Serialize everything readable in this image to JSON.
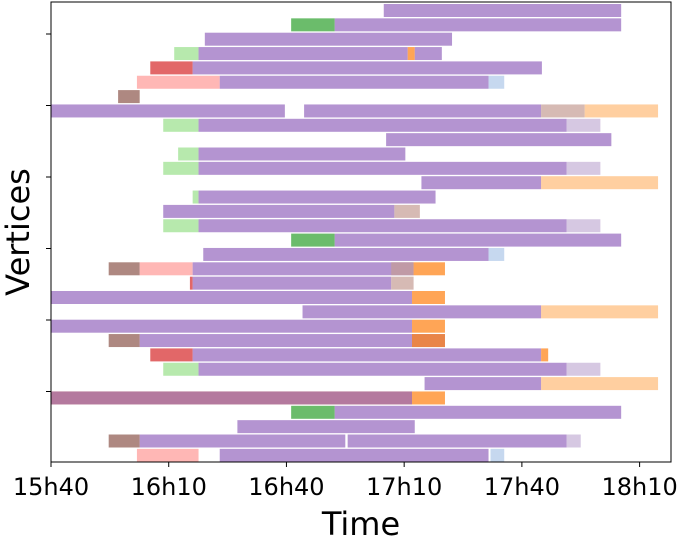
{
  "chart_data": {
    "type": "gantt",
    "title": "",
    "xlabel": "Time",
    "ylabel": "Vertices",
    "x_unit": "minutes since 15h40",
    "xlim": [
      0,
      158
    ],
    "x_ticks": [
      {
        "value": 0,
        "label": "15h40"
      },
      {
        "value": 30,
        "label": "16h10"
      },
      {
        "value": 60,
        "label": "16h40"
      },
      {
        "value": 90,
        "label": "17h10"
      },
      {
        "value": 120,
        "label": "17h40"
      },
      {
        "value": 150,
        "label": "18h10"
      }
    ],
    "y_tick_count": 6,
    "y_rows": 32,
    "colors": {
      "purple": "#9467bd",
      "green": "#2ca02c",
      "lightgreen": "#98df8a",
      "red": "#d62728",
      "pink": "#ff9896",
      "brown": "#8c564b",
      "tan": "#c49c94",
      "orange": "#ff7f0e",
      "lightorange": "#ffbb78",
      "lightblue": "#aec7e8",
      "lightpurple": "#c5b0d5"
    },
    "bars": [
      {
        "row": 0,
        "start": 21.9,
        "end": 37.6,
        "color": "pink"
      },
      {
        "row": 0,
        "start": 43.0,
        "end": 111.5,
        "color": "purple"
      },
      {
        "row": 0,
        "start": 112.0,
        "end": 115.5,
        "color": "lightblue"
      },
      {
        "row": 1,
        "start": 14.7,
        "end": 22.6,
        "color": "brown"
      },
      {
        "row": 1,
        "start": 22.6,
        "end": 75.0,
        "color": "purple"
      },
      {
        "row": 1,
        "start": 75.6,
        "end": 131.4,
        "color": "purple"
      },
      {
        "row": 1,
        "start": 131.4,
        "end": 135.0,
        "color": "lightpurple"
      },
      {
        "row": 2,
        "start": 47.5,
        "end": 92.7,
        "color": "purple"
      },
      {
        "row": 3,
        "start": 61.2,
        "end": 72.3,
        "color": "green"
      },
      {
        "row": 3,
        "start": 72.3,
        "end": 145.3,
        "color": "purple"
      },
      {
        "row": 4,
        "start": 0.0,
        "end": 92.0,
        "color": "orange"
      },
      {
        "row": 4,
        "start": 92.0,
        "end": 100.4,
        "color": "orange"
      },
      {
        "row": 4,
        "start": 0.0,
        "end": 92.0,
        "color": "purple"
      },
      {
        "row": 5,
        "start": 95.2,
        "end": 124.9,
        "color": "purple"
      },
      {
        "row": 5,
        "start": 124.9,
        "end": 154.7,
        "color": "lightorange"
      },
      {
        "row": 6,
        "start": 28.6,
        "end": 37.6,
        "color": "lightgreen"
      },
      {
        "row": 6,
        "start": 37.6,
        "end": 131.4,
        "color": "purple"
      },
      {
        "row": 6,
        "start": 131.4,
        "end": 140.0,
        "color": "lightpurple"
      },
      {
        "row": 7,
        "start": 25.3,
        "end": 36.1,
        "color": "red"
      },
      {
        "row": 7,
        "start": 36.1,
        "end": 124.9,
        "color": "purple"
      },
      {
        "row": 7,
        "start": 124.9,
        "end": 126.7,
        "color": "orange"
      },
      {
        "row": 8,
        "start": 14.7,
        "end": 22.6,
        "color": "brown"
      },
      {
        "row": 8,
        "start": 22.6,
        "end": 100.4,
        "color": "purple"
      },
      {
        "row": 8,
        "start": 92.0,
        "end": 100.4,
        "color": "orange"
      },
      {
        "row": 9,
        "start": 0.0,
        "end": 92.0,
        "color": "purple"
      },
      {
        "row": 9,
        "start": 92.0,
        "end": 100.4,
        "color": "orange"
      },
      {
        "row": 10,
        "start": 64.1,
        "end": 124.9,
        "color": "purple"
      },
      {
        "row": 10,
        "start": 124.9,
        "end": 154.7,
        "color": "lightorange"
      },
      {
        "row": 11,
        "start": 0.0,
        "end": 92.0,
        "color": "purple"
      },
      {
        "row": 11,
        "start": 92.0,
        "end": 100.4,
        "color": "orange"
      },
      {
        "row": 12,
        "start": 35.4,
        "end": 36.1,
        "color": "red"
      },
      {
        "row": 12,
        "start": 36.1,
        "end": 86.7,
        "color": "purple"
      },
      {
        "row": 12,
        "start": 86.7,
        "end": 92.4,
        "color": "tan"
      },
      {
        "row": 13,
        "start": 14.7,
        "end": 22.6,
        "color": "brown"
      },
      {
        "row": 13,
        "start": 22.6,
        "end": 36.1,
        "color": "pink"
      },
      {
        "row": 13,
        "start": 36.1,
        "end": 92.4,
        "color": "purple"
      },
      {
        "row": 13,
        "start": 86.7,
        "end": 92.4,
        "color": "tan"
      },
      {
        "row": 13,
        "start": 92.4,
        "end": 100.4,
        "color": "orange"
      },
      {
        "row": 14,
        "start": 38.8,
        "end": 111.5,
        "color": "purple"
      },
      {
        "row": 14,
        "start": 111.5,
        "end": 115.5,
        "color": "lightblue"
      },
      {
        "row": 15,
        "start": 61.2,
        "end": 72.3,
        "color": "green"
      },
      {
        "row": 15,
        "start": 72.3,
        "end": 145.3,
        "color": "purple"
      },
      {
        "row": 16,
        "start": 28.6,
        "end": 37.6,
        "color": "lightgreen"
      },
      {
        "row": 16,
        "start": 37.6,
        "end": 131.4,
        "color": "purple"
      },
      {
        "row": 16,
        "start": 131.4,
        "end": 140.0,
        "color": "lightpurple"
      },
      {
        "row": 17,
        "start": 28.6,
        "end": 87.5,
        "color": "purple"
      },
      {
        "row": 17,
        "start": 87.5,
        "end": 94.0,
        "color": "tan"
      },
      {
        "row": 18,
        "start": 36.1,
        "end": 37.6,
        "color": "lightgreen"
      },
      {
        "row": 18,
        "start": 37.6,
        "end": 98.0,
        "color": "purple"
      },
      {
        "row": 19,
        "start": 94.4,
        "end": 124.9,
        "color": "purple"
      },
      {
        "row": 19,
        "start": 124.9,
        "end": 154.7,
        "color": "lightorange"
      },
      {
        "row": 20,
        "start": 28.6,
        "end": 37.6,
        "color": "lightgreen"
      },
      {
        "row": 20,
        "start": 37.6,
        "end": 131.4,
        "color": "purple"
      },
      {
        "row": 20,
        "start": 131.4,
        "end": 140.0,
        "color": "lightpurple"
      },
      {
        "row": 21,
        "start": 32.4,
        "end": 37.6,
        "color": "lightgreen"
      },
      {
        "row": 21,
        "start": 37.6,
        "end": 90.3,
        "color": "purple"
      },
      {
        "row": 22,
        "start": 85.4,
        "end": 142.8,
        "color": "purple"
      },
      {
        "row": 23,
        "start": 28.6,
        "end": 37.6,
        "color": "lightgreen"
      },
      {
        "row": 23,
        "start": 37.6,
        "end": 131.4,
        "color": "purple"
      },
      {
        "row": 23,
        "start": 131.4,
        "end": 140.0,
        "color": "lightpurple"
      },
      {
        "row": 24,
        "start": 0.0,
        "end": 59.6,
        "color": "purple"
      },
      {
        "row": 24,
        "start": 64.5,
        "end": 124.9,
        "color": "purple"
      },
      {
        "row": 24,
        "start": 124.9,
        "end": 136.0,
        "color": "tan"
      },
      {
        "row": 24,
        "start": 136.0,
        "end": 154.7,
        "color": "lightorange"
      },
      {
        "row": 25,
        "start": 17.1,
        "end": 22.6,
        "color": "brown"
      },
      {
        "row": 26,
        "start": 21.9,
        "end": 43.0,
        "color": "pink"
      },
      {
        "row": 26,
        "start": 43.0,
        "end": 111.5,
        "color": "purple"
      },
      {
        "row": 26,
        "start": 111.5,
        "end": 115.5,
        "color": "lightblue"
      },
      {
        "row": 27,
        "start": 25.3,
        "end": 36.1,
        "color": "red"
      },
      {
        "row": 27,
        "start": 36.1,
        "end": 125.1,
        "color": "purple"
      },
      {
        "row": 28,
        "start": 31.4,
        "end": 37.6,
        "color": "lightgreen"
      },
      {
        "row": 28,
        "start": 37.6,
        "end": 90.9,
        "color": "purple"
      },
      {
        "row": 28,
        "start": 90.9,
        "end": 92.7,
        "color": "orange"
      },
      {
        "row": 28,
        "start": 92.7,
        "end": 99.6,
        "color": "purple"
      },
      {
        "row": 29,
        "start": 39.2,
        "end": 102.2,
        "color": "purple"
      },
      {
        "row": 30,
        "start": 61.2,
        "end": 72.3,
        "color": "green"
      },
      {
        "row": 30,
        "start": 72.3,
        "end": 145.3,
        "color": "purple"
      },
      {
        "row": 31,
        "start": 84.8,
        "end": 145.3,
        "color": "purple"
      }
    ]
  }
}
